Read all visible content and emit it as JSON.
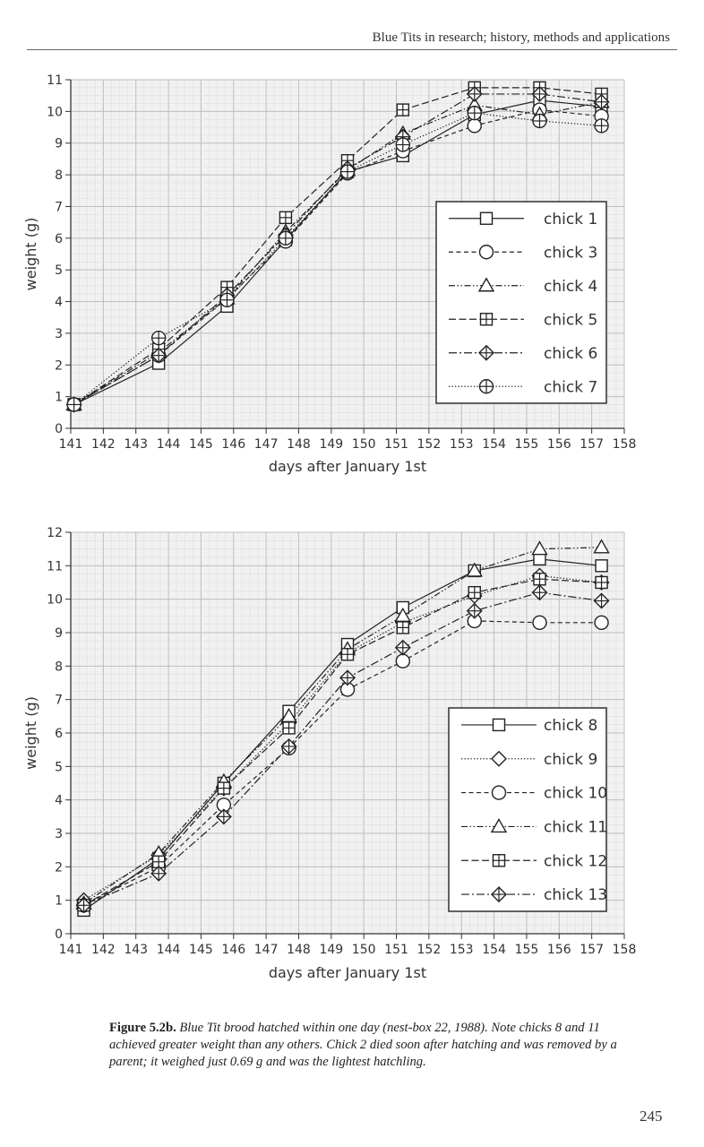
{
  "page": {
    "running_head": "Blue Tits in research; history, methods and applications",
    "page_number": "245",
    "caption_label": "Figure 5.2b.",
    "caption_text": "Blue Tit brood hatched within one day (nest-box 22, 1988). Note chicks 8 and 11 achieved greater weight than any others. Chick 2 died soon after hatching and was removed by a parent; it weighed just 0.69 g and was the lightest hatchling."
  },
  "chart_data": [
    {
      "type": "line",
      "title": "",
      "xlabel": "days after January 1st",
      "ylabel": "weight (g)",
      "xlim": [
        141,
        158
      ],
      "ylim": [
        0,
        11
      ],
      "xticks": [
        "141",
        "142",
        "143",
        "144",
        "145",
        "146",
        "147",
        "148",
        "149",
        "150",
        "151",
        "152",
        "153",
        "154",
        "155",
        "156",
        "157",
        "158"
      ],
      "yticks": [
        "0",
        "1",
        "2",
        "3",
        "4",
        "5",
        "6",
        "7",
        "8",
        "9",
        "10",
        "11"
      ],
      "grid": true,
      "legend_position": "center-right",
      "x": [
        141.1,
        143.7,
        145.8,
        147.6,
        149.5,
        151.2,
        153.4,
        155.4,
        157.3
      ],
      "series": [
        {
          "name": "chick 1",
          "marker": "square",
          "line": "solid",
          "values": [
            0.75,
            2.05,
            3.85,
            5.95,
            8.1,
            8.6,
            9.9,
            10.35,
            10.15
          ]
        },
        {
          "name": "chick 3",
          "marker": "circle",
          "line": "dashed",
          "values": [
            0.75,
            2.3,
            4.1,
            5.9,
            8.05,
            8.75,
            9.55,
            10.05,
            9.85
          ]
        },
        {
          "name": "chick 4",
          "marker": "triangle",
          "line": "dash-dot-dot",
          "values": [
            0.75,
            2.4,
            4.1,
            6.2,
            8.15,
            9.3,
            10.2,
            9.9,
            10.3
          ]
        },
        {
          "name": "chick 5",
          "marker": "square-plus",
          "line": "long-dash",
          "values": [
            0.75,
            2.5,
            4.45,
            6.65,
            8.45,
            10.05,
            10.75,
            10.75,
            10.55
          ]
        },
        {
          "name": "chick 6",
          "marker": "diamond-plus",
          "line": "dash-dot",
          "values": [
            0.75,
            2.3,
            4.2,
            6.1,
            8.2,
            9.2,
            10.55,
            10.55,
            10.3
          ]
        },
        {
          "name": "chick 7",
          "marker": "circle-plus",
          "line": "dotted",
          "values": [
            0.75,
            2.85,
            4.05,
            6.0,
            8.1,
            8.95,
            9.95,
            9.7,
            9.55
          ]
        }
      ]
    },
    {
      "type": "line",
      "title": "",
      "xlabel": "days after January 1st",
      "ylabel": "weight (g)",
      "xlim": [
        141,
        158
      ],
      "ylim": [
        0,
        12
      ],
      "xticks": [
        "141",
        "142",
        "143",
        "144",
        "145",
        "146",
        "147",
        "148",
        "149",
        "150",
        "151",
        "152",
        "153",
        "154",
        "155",
        "156",
        "157",
        "158"
      ],
      "yticks": [
        "0",
        "1",
        "2",
        "3",
        "4",
        "5",
        "6",
        "7",
        "8",
        "9",
        "10",
        "11",
        "12"
      ],
      "grid": true,
      "legend_position": "center-right",
      "x": [
        141.4,
        143.7,
        145.7,
        147.7,
        149.5,
        151.2,
        153.4,
        155.4,
        157.3
      ],
      "series": [
        {
          "name": "chick 8",
          "marker": "square",
          "line": "solid",
          "values": [
            0.7,
            2.25,
            4.5,
            6.65,
            8.65,
            9.75,
            10.85,
            11.2,
            11.0
          ]
        },
        {
          "name": "chick 9",
          "marker": "diamond",
          "line": "dotted",
          "values": [
            1.0,
            2.35,
            4.35,
            6.3,
            8.4,
            9.3,
            10.1,
            10.7,
            10.5
          ]
        },
        {
          "name": "chick 10",
          "marker": "circle",
          "line": "dashed",
          "values": [
            0.85,
            2.0,
            3.85,
            5.55,
            7.3,
            8.15,
            9.35,
            9.3,
            9.3
          ]
        },
        {
          "name": "chick 11",
          "marker": "triangle",
          "line": "dash-dot-dot",
          "values": [
            0.9,
            2.4,
            4.55,
            6.5,
            8.5,
            9.5,
            10.85,
            11.5,
            11.55
          ]
        },
        {
          "name": "chick 12",
          "marker": "square-plus",
          "line": "long-dash",
          "values": [
            0.85,
            2.15,
            4.35,
            6.15,
            8.35,
            9.15,
            10.2,
            10.6,
            10.5
          ]
        },
        {
          "name": "chick 13",
          "marker": "diamond-plus",
          "line": "dash-dot",
          "values": [
            0.85,
            1.8,
            3.5,
            5.6,
            7.65,
            8.55,
            9.65,
            10.2,
            9.95
          ]
        }
      ]
    }
  ]
}
